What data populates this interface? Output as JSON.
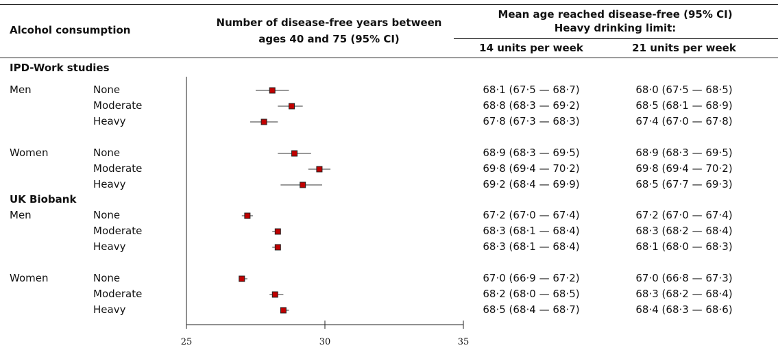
{
  "headers": {
    "alcohol": "Alcohol consumption",
    "years_line1": "Number of disease-free years between",
    "years_line2": "ages 40 and 75 (95% CI)",
    "mean_line1": "Mean age reached disease-free (95% CI)",
    "mean_line2": "Heavy drinking limit:",
    "col14": "14 units per week",
    "col21": "21 units per week"
  },
  "studies": [
    {
      "name": "IPD-Work studies",
      "sexes": [
        {
          "sex": "Men",
          "rows": [
            {
              "level": "None",
              "point": 28.1,
              "lo": 27.5,
              "hi": 28.7,
              "ci14": "68·1 (67·5 — 68·7)",
              "ci21": "68·0 (67·5 — 68·5)"
            },
            {
              "level": "Moderate",
              "point": 28.8,
              "lo": 28.3,
              "hi": 29.2,
              "ci14": "68·8 (68·3 — 69·2)",
              "ci21": "68·5 (68·1 — 68·9)"
            },
            {
              "level": "Heavy",
              "point": 27.8,
              "lo": 27.3,
              "hi": 28.3,
              "ci14": "67·8 (67·3 — 68·3)",
              "ci21": "67·4 (67·0 — 67·8)"
            }
          ]
        },
        {
          "sex": "Women",
          "rows": [
            {
              "level": "None",
              "point": 28.9,
              "lo": 28.3,
              "hi": 29.5,
              "ci14": "68·9 (68·3 — 69·5)",
              "ci21": "68·9 (68·3 — 69·5)"
            },
            {
              "level": "Moderate",
              "point": 29.8,
              "lo": 29.4,
              "hi": 30.2,
              "ci14": "69·8 (69·4 — 70·2)",
              "ci21": "69·8 (69·4 — 70·2)"
            },
            {
              "level": "Heavy",
              "point": 29.2,
              "lo": 28.4,
              "hi": 29.9,
              "ci14": "69·2 (68·4 — 69·9)",
              "ci21": "68·5 (67·7 — 69·3)"
            }
          ]
        }
      ]
    },
    {
      "name": "UK Biobank",
      "sexes": [
        {
          "sex": "Men",
          "rows": [
            {
              "level": "None",
              "point": 27.2,
              "lo": 27.0,
              "hi": 27.4,
              "ci14": "67·2 (67·0 — 67·4)",
              "ci21": "67·2 (67·0 — 67·4)"
            },
            {
              "level": "Moderate",
              "point": 28.3,
              "lo": 28.1,
              "hi": 28.4,
              "ci14": "68·3 (68·1 — 68·4)",
              "ci21": "68·3 (68·2 — 68·4)"
            },
            {
              "level": "Heavy",
              "point": 28.3,
              "lo": 28.1,
              "hi": 28.4,
              "ci14": "68·3 (68·1 — 68·4)",
              "ci21": "68·1 (68·0 — 68·3)"
            }
          ]
        },
        {
          "sex": "Women",
          "rows": [
            {
              "level": "None",
              "point": 27.0,
              "lo": 26.9,
              "hi": 27.2,
              "ci14": "67·0 (66·9 — 67·2)",
              "ci21": "67·0 (66·8 — 67·3)"
            },
            {
              "level": "Moderate",
              "point": 28.2,
              "lo": 28.0,
              "hi": 28.5,
              "ci14": "68·2 (68·0 — 68·5)",
              "ci21": "68·3 (68·2 — 68·4)"
            },
            {
              "level": "Heavy",
              "point": 28.5,
              "lo": 28.4,
              "hi": 28.7,
              "ci14": "68·5 (68·4 — 68·7)",
              "ci21": "68·4 (68·3 — 68·6)"
            }
          ]
        }
      ]
    }
  ],
  "chart_data": {
    "type": "forest",
    "xlim": [
      25,
      35
    ],
    "xticks": [
      25,
      30,
      35
    ],
    "tick_labels": [
      "25",
      "30",
      "35"
    ],
    "marker_color": "#c00000",
    "series": [
      {
        "name": "IPD-Work studies · Men · None",
        "point": 28.1,
        "ci": [
          27.5,
          28.7
        ]
      },
      {
        "name": "IPD-Work studies · Men · Moderate",
        "point": 28.8,
        "ci": [
          28.3,
          29.2
        ]
      },
      {
        "name": "IPD-Work studies · Men · Heavy",
        "point": 27.8,
        "ci": [
          27.3,
          28.3
        ]
      },
      {
        "name": "IPD-Work studies · Women · None",
        "point": 28.9,
        "ci": [
          28.3,
          29.5
        ]
      },
      {
        "name": "IPD-Work studies · Women · Moderate",
        "point": 29.8,
        "ci": [
          29.4,
          30.2
        ]
      },
      {
        "name": "IPD-Work studies · Women · Heavy",
        "point": 29.2,
        "ci": [
          28.4,
          29.9
        ]
      },
      {
        "name": "UK Biobank · Men · None",
        "point": 27.2,
        "ci": [
          27.0,
          27.4
        ]
      },
      {
        "name": "UK Biobank · Men · Moderate",
        "point": 28.3,
        "ci": [
          28.1,
          28.4
        ]
      },
      {
        "name": "UK Biobank · Men · Heavy",
        "point": 28.3,
        "ci": [
          28.1,
          28.4
        ]
      },
      {
        "name": "UK Biobank · Women · None",
        "point": 27.0,
        "ci": [
          26.9,
          27.2
        ]
      },
      {
        "name": "UK Biobank · Women · Moderate",
        "point": 28.2,
        "ci": [
          28.0,
          28.5
        ]
      },
      {
        "name": "UK Biobank · Women · Heavy",
        "point": 28.5,
        "ci": [
          28.4,
          28.7
        ]
      }
    ]
  }
}
